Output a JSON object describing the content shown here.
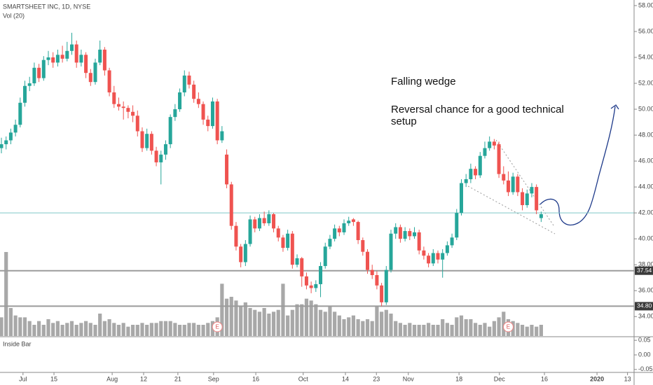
{
  "chart_data": {
    "type": "candlestick",
    "title": "SMARTSHEET INC, 1D, NYSE",
    "volume_label": "Vol (20)",
    "up_color": "#26a69a",
    "down_color": "#ef5350",
    "volume_color": "#a8a8a8",
    "ylim": [
      32.5,
      58.43
    ],
    "yticks": [
      {
        "value": 34,
        "label": "34.00"
      },
      {
        "value": 36,
        "label": "36.00"
      },
      {
        "value": 38,
        "label": "38.00"
      },
      {
        "value": 40,
        "label": "40.00"
      },
      {
        "value": 42,
        "label": "42.00"
      },
      {
        "value": 44,
        "label": "44.00"
      },
      {
        "value": 46,
        "label": "46.00"
      },
      {
        "value": 48,
        "label": "48.00"
      },
      {
        "value": 50,
        "label": "50.00"
      },
      {
        "value": 52,
        "label": "52.00"
      },
      {
        "value": 54,
        "label": "54.00"
      },
      {
        "value": 56,
        "label": "56.00"
      },
      {
        "value": 58,
        "label": "58.00"
      }
    ],
    "xlim": [
      -0.3,
      134.8
    ],
    "xticks": [
      {
        "value": 4.6,
        "label": "Jul"
      },
      {
        "value": 11.2,
        "label": "15"
      },
      {
        "value": 23.6,
        "label": "Aug"
      },
      {
        "value": 30.3,
        "label": "12"
      },
      {
        "value": 37.6,
        "label": "21"
      },
      {
        "value": 45.2,
        "label": "Sep"
      },
      {
        "value": 54.2,
        "label": "16"
      },
      {
        "value": 64.3,
        "label": "Oct"
      },
      {
        "value": 73.3,
        "label": "14"
      },
      {
        "value": 79.9,
        "label": "23"
      },
      {
        "value": 86.7,
        "label": "Nov"
      },
      {
        "value": 97.5,
        "label": "18"
      },
      {
        "value": 106.1,
        "label": "Dec"
      },
      {
        "value": 115.7,
        "label": "16"
      },
      {
        "value": 126.9,
        "label": "2020"
      },
      {
        "value": 133.4,
        "label": "13"
      }
    ],
    "hline": 42,
    "hline_color": "#7fc8c8",
    "levels": [
      37.54,
      {
        "value": 34.8,
        "label": "34.80"
      }
    ],
    "events": [
      {
        "label": "E",
        "index": 46
      },
      {
        "label": "E",
        "index": 108
      }
    ],
    "annotations": [
      "Falling wedge",
      "Reversal chance for a good technical",
      "setup"
    ],
    "candles": [
      [
        47.0,
        47.8,
        46.6,
        47.3
      ],
      [
        47.3,
        47.9,
        46.9,
        47.6
      ],
      [
        47.6,
        48.5,
        47.3,
        48.2
      ],
      [
        48.2,
        49.2,
        47.9,
        48.8
      ],
      [
        48.8,
        50.9,
        48.6,
        50.5
      ],
      [
        50.5,
        52.2,
        50.2,
        51.8
      ],
      [
        51.8,
        52.5,
        51.4,
        52.0
      ],
      [
        52.0,
        53.6,
        51.8,
        53.2
      ],
      [
        53.2,
        53.5,
        52.1,
        52.4
      ],
      [
        52.4,
        54.1,
        52.2,
        53.8
      ],
      [
        53.8,
        54.5,
        53.4,
        54.0
      ],
      [
        54.0,
        54.4,
        53.2,
        53.6
      ],
      [
        53.6,
        54.6,
        53.3,
        54.2
      ],
      [
        54.2,
        54.9,
        53.6,
        53.9
      ],
      [
        53.9,
        55.2,
        53.7,
        54.5
      ],
      [
        54.5,
        55.9,
        54.2,
        55.0
      ],
      [
        55.0,
        55.3,
        53.2,
        53.6
      ],
      [
        53.6,
        54.6,
        53.3,
        54.2
      ],
      [
        54.2,
        54.4,
        52.4,
        52.8
      ],
      [
        52.8,
        53.1,
        51.8,
        52.1
      ],
      [
        52.1,
        53.9,
        51.9,
        53.6
      ],
      [
        53.6,
        55.3,
        53.4,
        54.6
      ],
      [
        54.6,
        54.8,
        52.6,
        53.0
      ],
      [
        53.0,
        53.2,
        51.0,
        51.3
      ],
      [
        51.3,
        51.8,
        50.1,
        50.4
      ],
      [
        50.4,
        50.9,
        49.9,
        50.2
      ],
      [
        50.2,
        50.6,
        49.2,
        50.1
      ],
      [
        50.1,
        50.3,
        49.3,
        49.8
      ],
      [
        49.8,
        50.3,
        49.0,
        49.5
      ],
      [
        49.5,
        49.9,
        47.9,
        48.3
      ],
      [
        48.3,
        48.6,
        46.7,
        47.0
      ],
      [
        47.0,
        48.5,
        46.8,
        48.1
      ],
      [
        48.1,
        48.3,
        46.5,
        46.8
      ],
      [
        46.8,
        47.1,
        45.6,
        45.9
      ],
      [
        45.9,
        46.8,
        44.2,
        46.5
      ],
      [
        46.5,
        47.6,
        46.1,
        47.3
      ],
      [
        47.3,
        49.6,
        47.0,
        49.4
      ],
      [
        49.4,
        50.4,
        49.1,
        50.0
      ],
      [
        50.0,
        51.6,
        49.8,
        51.3
      ],
      [
        51.3,
        53.0,
        51.0,
        52.6
      ],
      [
        52.6,
        52.9,
        51.6,
        51.9
      ],
      [
        51.9,
        52.2,
        50.5,
        50.8
      ],
      [
        50.8,
        51.3,
        50.1,
        50.4
      ],
      [
        50.4,
        50.6,
        48.8,
        49.2
      ],
      [
        49.2,
        49.5,
        48.3,
        48.7
      ],
      [
        48.7,
        50.9,
        48.5,
        50.6
      ],
      [
        50.6,
        50.8,
        47.3,
        47.6
      ],
      [
        47.6,
        48.7,
        47.4,
        48.3
      ],
      [
        46.5,
        46.9,
        43.9,
        44.2
      ],
      [
        44.2,
        44.4,
        40.7,
        41.0
      ],
      [
        41.0,
        41.3,
        39.1,
        39.4
      ],
      [
        39.4,
        39.6,
        37.8,
        38.2
      ],
      [
        38.2,
        39.9,
        37.9,
        39.6
      ],
      [
        39.6,
        41.8,
        39.4,
        41.5
      ],
      [
        41.5,
        41.7,
        40.5,
        40.8
      ],
      [
        40.8,
        41.9,
        40.6,
        41.6
      ],
      [
        41.6,
        42.1,
        41.0,
        41.2
      ],
      [
        41.2,
        42.2,
        41.0,
        41.9
      ],
      [
        41.9,
        42.0,
        40.5,
        40.8
      ],
      [
        40.8,
        41.0,
        39.8,
        40.1
      ],
      [
        40.1,
        40.3,
        39.0,
        39.3
      ],
      [
        39.3,
        40.7,
        39.1,
        40.4
      ],
      [
        40.4,
        40.6,
        37.7,
        38.0
      ],
      [
        38.0,
        38.8,
        37.8,
        38.5
      ],
      [
        38.5,
        38.6,
        36.3,
        37.1
      ],
      [
        37.1,
        37.4,
        36.1,
        36.4
      ],
      [
        36.4,
        36.7,
        35.8,
        36.2
      ],
      [
        36.2,
        36.8,
        35.9,
        36.5
      ],
      [
        36.5,
        38.2,
        35.5,
        37.9
      ],
      [
        37.9,
        39.7,
        37.7,
        39.4
      ],
      [
        39.4,
        40.3,
        39.2,
        40.0
      ],
      [
        40.0,
        41.1,
        39.8,
        40.8
      ],
      [
        40.8,
        41.0,
        40.2,
        40.5
      ],
      [
        40.5,
        41.5,
        40.3,
        41.2
      ],
      [
        41.2,
        41.7,
        41.0,
        41.4
      ],
      [
        41.5,
        41.6,
        41.0,
        41.3
      ],
      [
        41.3,
        41.4,
        39.6,
        39.9
      ],
      [
        39.9,
        40.1,
        38.7,
        39.0
      ],
      [
        39.0,
        39.2,
        37.3,
        37.6
      ],
      [
        37.6,
        38.0,
        36.9,
        37.2
      ],
      [
        37.2,
        37.5,
        36.1,
        36.4
      ],
      [
        36.4,
        36.6,
        34.8,
        35.1
      ],
      [
        35.1,
        37.9,
        34.9,
        37.6
      ],
      [
        37.6,
        40.7,
        37.4,
        40.4
      ],
      [
        40.4,
        41.2,
        40.0,
        40.9
      ],
      [
        40.9,
        41.1,
        39.7,
        40.0
      ],
      [
        40.0,
        40.9,
        39.8,
        40.6
      ],
      [
        40.6,
        40.8,
        39.9,
        40.2
      ],
      [
        40.2,
        40.9,
        40.0,
        40.5
      ],
      [
        40.5,
        40.7,
        38.8,
        39.1
      ],
      [
        39.1,
        39.4,
        38.4,
        38.7
      ],
      [
        38.7,
        38.9,
        37.8,
        38.1
      ],
      [
        38.1,
        39.2,
        37.9,
        38.9
      ],
      [
        38.9,
        39.1,
        38.1,
        38.4
      ],
      [
        38.4,
        39.2,
        37.0,
        38.9
      ],
      [
        38.9,
        39.8,
        38.7,
        39.5
      ],
      [
        39.5,
        40.4,
        39.3,
        40.1
      ],
      [
        40.1,
        42.3,
        39.9,
        42.0
      ],
      [
        42.0,
        44.6,
        41.8,
        44.3
      ],
      [
        44.3,
        45.0,
        44.0,
        44.6
      ],
      [
        44.6,
        45.8,
        44.3,
        45.4
      ],
      [
        45.4,
        45.6,
        44.6,
        44.9
      ],
      [
        44.9,
        46.7,
        44.7,
        46.4
      ],
      [
        46.4,
        47.5,
        46.2,
        47.0
      ],
      [
        47.0,
        47.9,
        46.8,
        47.5
      ],
      [
        47.5,
        47.7,
        46.9,
        47.2
      ],
      [
        47.3,
        47.5,
        44.7,
        45.0
      ],
      [
        45.0,
        45.6,
        44.2,
        44.5
      ],
      [
        44.5,
        45.2,
        43.3,
        43.6
      ],
      [
        43.6,
        45.1,
        43.4,
        44.8
      ],
      [
        44.8,
        45.0,
        43.3,
        43.6
      ],
      [
        43.6,
        43.9,
        42.2,
        42.6
      ],
      [
        42.6,
        43.8,
        42.4,
        43.5
      ],
      [
        43.5,
        44.3,
        43.2,
        44.0
      ],
      [
        44.0,
        44.2,
        41.9,
        42.2
      ],
      [
        41.6,
        42.1,
        41.3,
        41.9
      ]
    ],
    "volume": [
      1.0,
      4.5,
      1.5,
      1.1,
      1.0,
      1.0,
      0.8,
      0.6,
      0.8,
      0.6,
      0.9,
      0.7,
      0.8,
      0.6,
      0.7,
      0.8,
      0.6,
      0.7,
      0.8,
      0.7,
      0.6,
      1.2,
      0.8,
      0.9,
      0.7,
      0.6,
      0.7,
      0.5,
      0.6,
      0.6,
      0.7,
      0.6,
      0.7,
      0.7,
      0.8,
      0.8,
      0.8,
      0.7,
      0.6,
      0.6,
      0.7,
      0.7,
      0.6,
      0.6,
      0.7,
      0.8,
      1.0,
      2.8,
      2.0,
      2.1,
      1.9,
      1.6,
      1.8,
      1.5,
      1.4,
      1.3,
      1.5,
      1.2,
      1.3,
      1.4,
      2.8,
      1.1,
      1.4,
      1.7,
      1.7,
      2.0,
      1.9,
      1.7,
      1.4,
      1.3,
      1.6,
      1.3,
      1.1,
      0.9,
      1.0,
      1.1,
      0.9,
      0.8,
      0.9,
      0.8,
      1.6,
      1.3,
      1.4,
      1.2,
      0.8,
      0.7,
      0.6,
      0.7,
      0.6,
      0.6,
      0.6,
      0.7,
      0.6,
      0.6,
      0.9,
      0.7,
      0.6,
      1.0,
      1.1,
      0.9,
      0.9,
      0.7,
      0.6,
      0.7,
      0.5,
      0.8,
      1.0,
      1.3,
      0.9,
      0.8,
      0.7,
      0.6,
      0.5,
      0.6,
      0.5,
      0.6
    ],
    "indicator": {
      "title": "Inside Bar",
      "ylim": [
        -0.06,
        0.06
      ],
      "yticks": [
        0.05,
        {
          "value": 0,
          "label": "0.00"
        },
        -0.05
      ]
    }
  }
}
